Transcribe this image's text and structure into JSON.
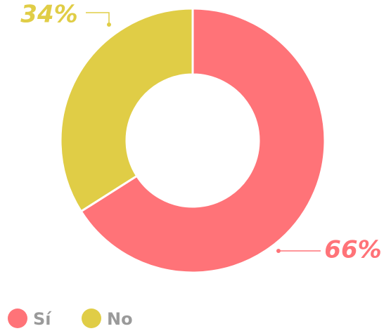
{
  "chart_data": {
    "type": "donut",
    "categories": [
      "Sí",
      "No"
    ],
    "values": [
      66,
      34
    ],
    "value_labels": [
      "66%",
      "34%"
    ],
    "colors": [
      "#ff7378",
      "#e0cd46"
    ]
  }
}
